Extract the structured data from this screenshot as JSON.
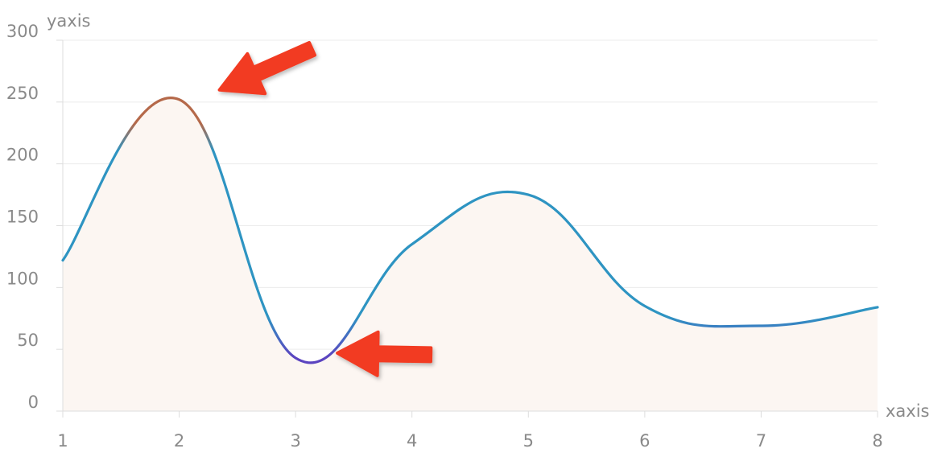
{
  "chart_data": {
    "type": "line",
    "title": "",
    "xlabel": "xaxis",
    "ylabel": "yaxis",
    "x": [
      1,
      2,
      3,
      4,
      5,
      6,
      7,
      8
    ],
    "series": [
      {
        "values": [
          122,
          252,
          43,
          135,
          175,
          85,
          69,
          84
        ]
      }
    ],
    "xlim": [
      1,
      8
    ],
    "ylim": [
      0,
      300
    ],
    "x_ticks": [
      1,
      2,
      3,
      4,
      5,
      6,
      7,
      8
    ],
    "y_ticks": [
      0,
      50,
      100,
      150,
      200,
      250,
      300
    ],
    "grid": "horizontal",
    "smooth": true,
    "area_fill": true,
    "colors": {
      "line": "#2e94c2",
      "line_high": "#b5694a",
      "line_low": "#5b44c0",
      "area": "#fcf6f2",
      "grid": "#ececec",
      "axis": "#dddddd",
      "text": "#8a8a8a",
      "arrow": "#f23b24"
    },
    "annotations": [
      {
        "type": "arrow",
        "points_to": "peak",
        "x": 2,
        "y": 252
      },
      {
        "type": "arrow",
        "points_to": "trough",
        "x": 3,
        "y": 43
      }
    ]
  }
}
